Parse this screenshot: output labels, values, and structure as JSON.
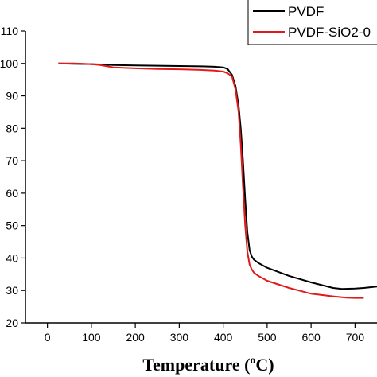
{
  "chart_data": {
    "type": "line",
    "xlabel_prefix": "Temperature (",
    "xlabel_sup": "o",
    "xlabel_suffix": "C)",
    "xlim": [
      -50,
      750
    ],
    "ylim": [
      20,
      110
    ],
    "x_ticks": [
      0,
      100,
      200,
      300,
      400,
      500,
      600,
      700
    ],
    "x_tick_labels": [
      "0",
      "100",
      "200",
      "300",
      "400",
      "500",
      "600",
      "700"
    ],
    "y_ticks": [
      20,
      30,
      40,
      50,
      60,
      70,
      80,
      90,
      100,
      110
    ],
    "y_tick_labels": [
      "20",
      "30",
      "40",
      "50",
      "60",
      "70",
      "80",
      "90",
      "100",
      "110"
    ],
    "legend_position": "top-right",
    "grid": false,
    "series": [
      {
        "name": "PVDF",
        "color": "#000000",
        "x": [
          25,
          60,
          100,
          150,
          200,
          250,
          300,
          350,
          380,
          400,
          410,
          420,
          428,
          435,
          440,
          445,
          450,
          455,
          460,
          465,
          470,
          480,
          500,
          550,
          600,
          650,
          670,
          700,
          720,
          750
        ],
        "y": [
          100.0,
          99.9,
          99.8,
          99.5,
          99.4,
          99.3,
          99.2,
          99.1,
          99.0,
          98.8,
          98.3,
          96.5,
          93.0,
          87.0,
          80.0,
          70.0,
          58.0,
          48.0,
          42.5,
          40.5,
          39.5,
          38.5,
          37.0,
          34.5,
          32.5,
          30.8,
          30.5,
          30.6,
          30.8,
          31.2
        ]
      },
      {
        "name": "PVDF-SiO2-0",
        "color": "#e11a1a",
        "x": [
          25,
          60,
          100,
          120,
          150,
          200,
          250,
          300,
          350,
          380,
          400,
          410,
          420,
          428,
          435,
          440,
          445,
          450,
          455,
          460,
          465,
          470,
          480,
          500,
          550,
          600,
          650,
          680,
          700,
          720
        ],
        "y": [
          100.0,
          100.0,
          99.8,
          99.5,
          98.8,
          98.5,
          98.3,
          98.2,
          98.0,
          97.8,
          97.5,
          97.0,
          96.0,
          92.0,
          85.0,
          75.0,
          62.0,
          50.0,
          42.0,
          38.0,
          36.5,
          35.5,
          34.5,
          33.0,
          30.8,
          29.0,
          28.2,
          27.8,
          27.7,
          27.7
        ]
      }
    ]
  }
}
